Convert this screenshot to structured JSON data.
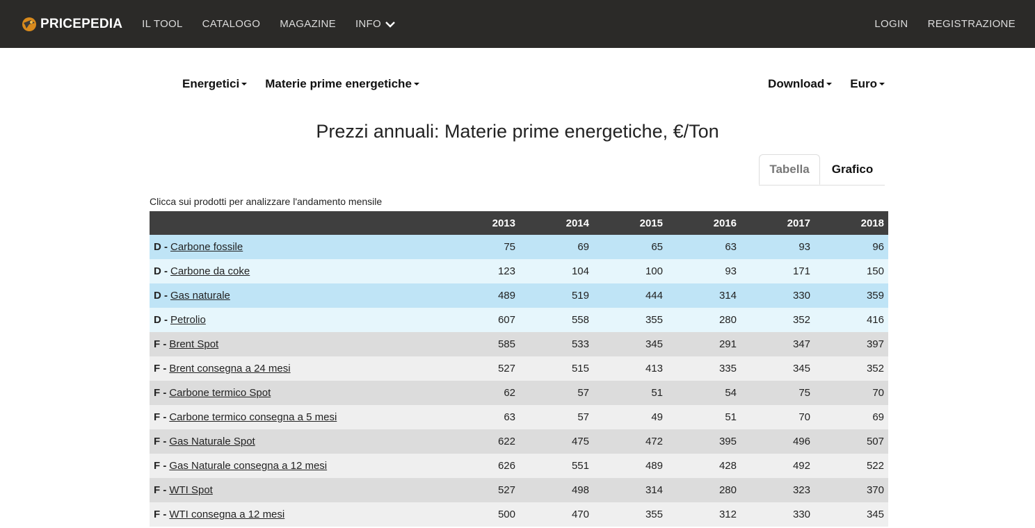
{
  "navbar": {
    "brand": "PRICEPEDIA",
    "links": [
      "IL TOOL",
      "CATALOGO",
      "MAGAZINE",
      "INFO"
    ],
    "right_links": [
      "LOGIN",
      "REGISTRAZIONE"
    ]
  },
  "toolbar": {
    "category": "Energetici",
    "subcategory": "Materie prime energetiche",
    "download": "Download",
    "currency": "Euro"
  },
  "page": {
    "title": "Prezzi annuali: Materie prime energetiche, €/Ton",
    "hint": "Clicca sui prodotti per analizzare l'andamento mensile"
  },
  "tabs": [
    "Tabella",
    "Grafico"
  ],
  "table": {
    "columns": [
      "",
      "2013",
      "2014",
      "2015",
      "2016",
      "2017",
      "2018"
    ],
    "rows": [
      {
        "prefix": "D -",
        "name": "Carbone fossile",
        "values": [
          "75",
          "69",
          "65",
          "63",
          "93",
          "96"
        ],
        "style": "d-dark"
      },
      {
        "prefix": "D -",
        "name": "Carbone da coke",
        "values": [
          "123",
          "104",
          "100",
          "93",
          "171",
          "150"
        ],
        "style": "d-light"
      },
      {
        "prefix": "D -",
        "name": "Gas naturale",
        "values": [
          "489",
          "519",
          "444",
          "314",
          "330",
          "359"
        ],
        "style": "d-dark"
      },
      {
        "prefix": "D -",
        "name": "Petrolio",
        "values": [
          "607",
          "558",
          "355",
          "280",
          "352",
          "416"
        ],
        "style": "d-light"
      },
      {
        "prefix": "F -",
        "name": "Brent Spot",
        "values": [
          "585",
          "533",
          "345",
          "291",
          "347",
          "397"
        ],
        "style": "f-dark"
      },
      {
        "prefix": "F -",
        "name": "Brent consegna a 24 mesi",
        "values": [
          "527",
          "515",
          "413",
          "335",
          "345",
          "352"
        ],
        "style": "f-light"
      },
      {
        "prefix": "F -",
        "name": "Carbone termico Spot",
        "values": [
          "62",
          "57",
          "51",
          "54",
          "75",
          "70"
        ],
        "style": "f-dark"
      },
      {
        "prefix": "F -",
        "name": "Carbone termico consegna a 5 mesi",
        "values": [
          "63",
          "57",
          "49",
          "51",
          "70",
          "69"
        ],
        "style": "f-light"
      },
      {
        "prefix": "F -",
        "name": "Gas Naturale Spot",
        "values": [
          "622",
          "475",
          "472",
          "395",
          "496",
          "507"
        ],
        "style": "f-dark"
      },
      {
        "prefix": "F -",
        "name": "Gas Naturale consegna a 12 mesi",
        "values": [
          "626",
          "551",
          "489",
          "428",
          "492",
          "522"
        ],
        "style": "f-light"
      },
      {
        "prefix": "F -",
        "name": "WTI Spot",
        "values": [
          "527",
          "498",
          "314",
          "280",
          "323",
          "370"
        ],
        "style": "f-dark"
      },
      {
        "prefix": "F -",
        "name": "WTI consegna a 12 mesi",
        "values": [
          "500",
          "470",
          "355",
          "312",
          "330",
          "345"
        ],
        "style": "f-light"
      }
    ]
  },
  "colors": {
    "navbar_bg": "#2b2a28",
    "table_header_bg": "#3f3f3f",
    "row_d_dark": "#bfe4f6",
    "row_d_light": "#e6f6fc",
    "row_f_dark": "#dcdcdc",
    "row_f_light": "#efefef"
  },
  "icons": {
    "brand_logo": "pricepedia-logo-icon",
    "info_chevron": "chevron-down-icon",
    "dropdown_caret": "caret-down-icon"
  }
}
